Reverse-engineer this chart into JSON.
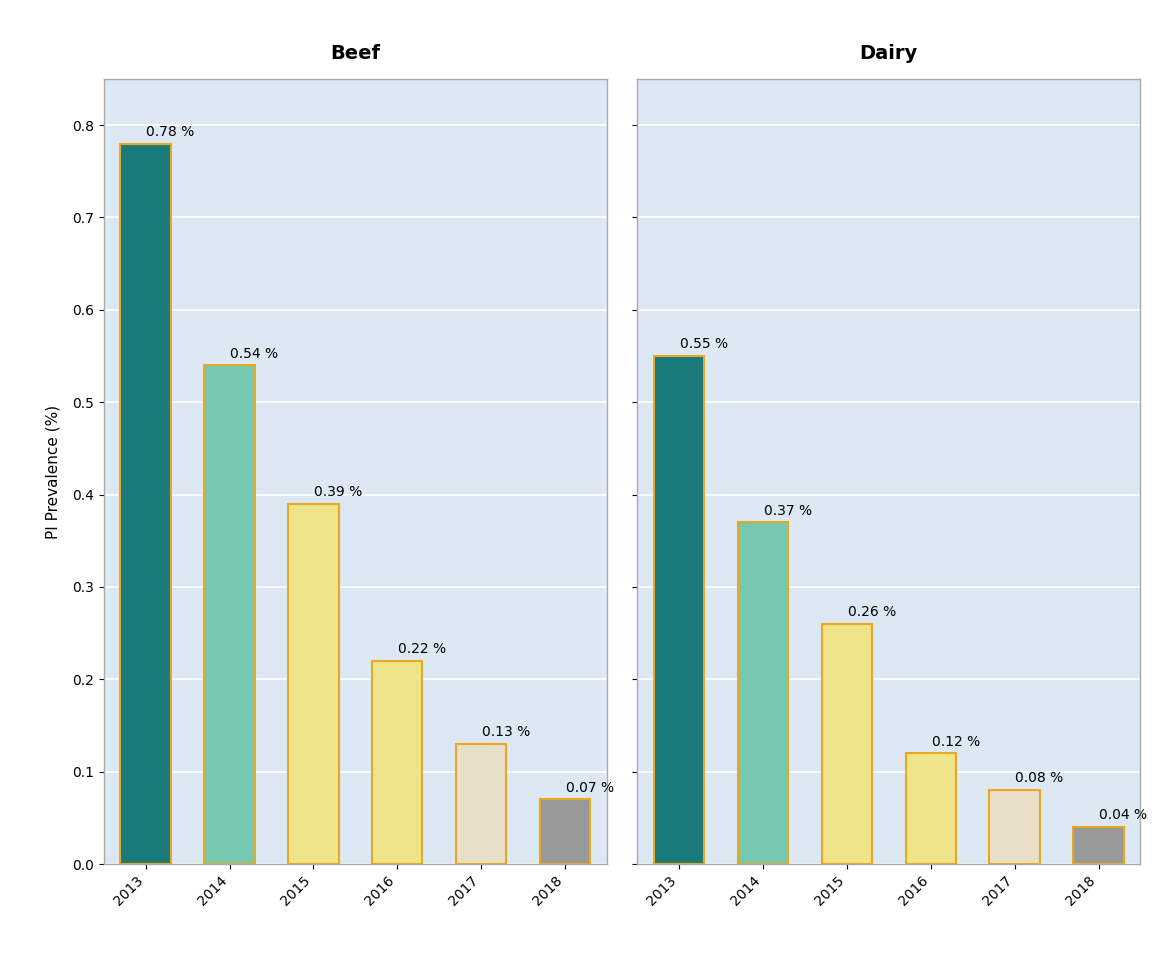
{
  "years": [
    "2013",
    "2014",
    "2015",
    "2016",
    "2017",
    "2018"
  ],
  "beef_values": [
    0.78,
    0.54,
    0.39,
    0.22,
    0.13,
    0.07
  ],
  "dairy_values": [
    0.55,
    0.37,
    0.26,
    0.12,
    0.08,
    0.04
  ],
  "bar_colors": [
    "#1a7a7a",
    "#76c8b0",
    "#f0e48a",
    "#f0e48a",
    "#e8e0c8",
    "#999999"
  ],
  "bar_edge_color": "#e8a820",
  "beef_label": "Beef",
  "dairy_label": "Dairy",
  "ylabel": "PI Prevalence (%)",
  "ylim": [
    0,
    0.85
  ],
  "yticks": [
    0.0,
    0.1,
    0.2,
    0.3,
    0.4,
    0.5,
    0.6,
    0.7,
    0.8
  ],
  "panel_bg": "#dce9f5",
  "outer_bg": "#ffffff",
  "grid_color": "#ffffff",
  "title_bg": "#c8c8c8",
  "border_color": "#aaaaaa",
  "title_fontsize": 14,
  "label_fontsize": 11,
  "tick_fontsize": 10,
  "annotation_fontsize": 10,
  "bar_width": 0.6
}
